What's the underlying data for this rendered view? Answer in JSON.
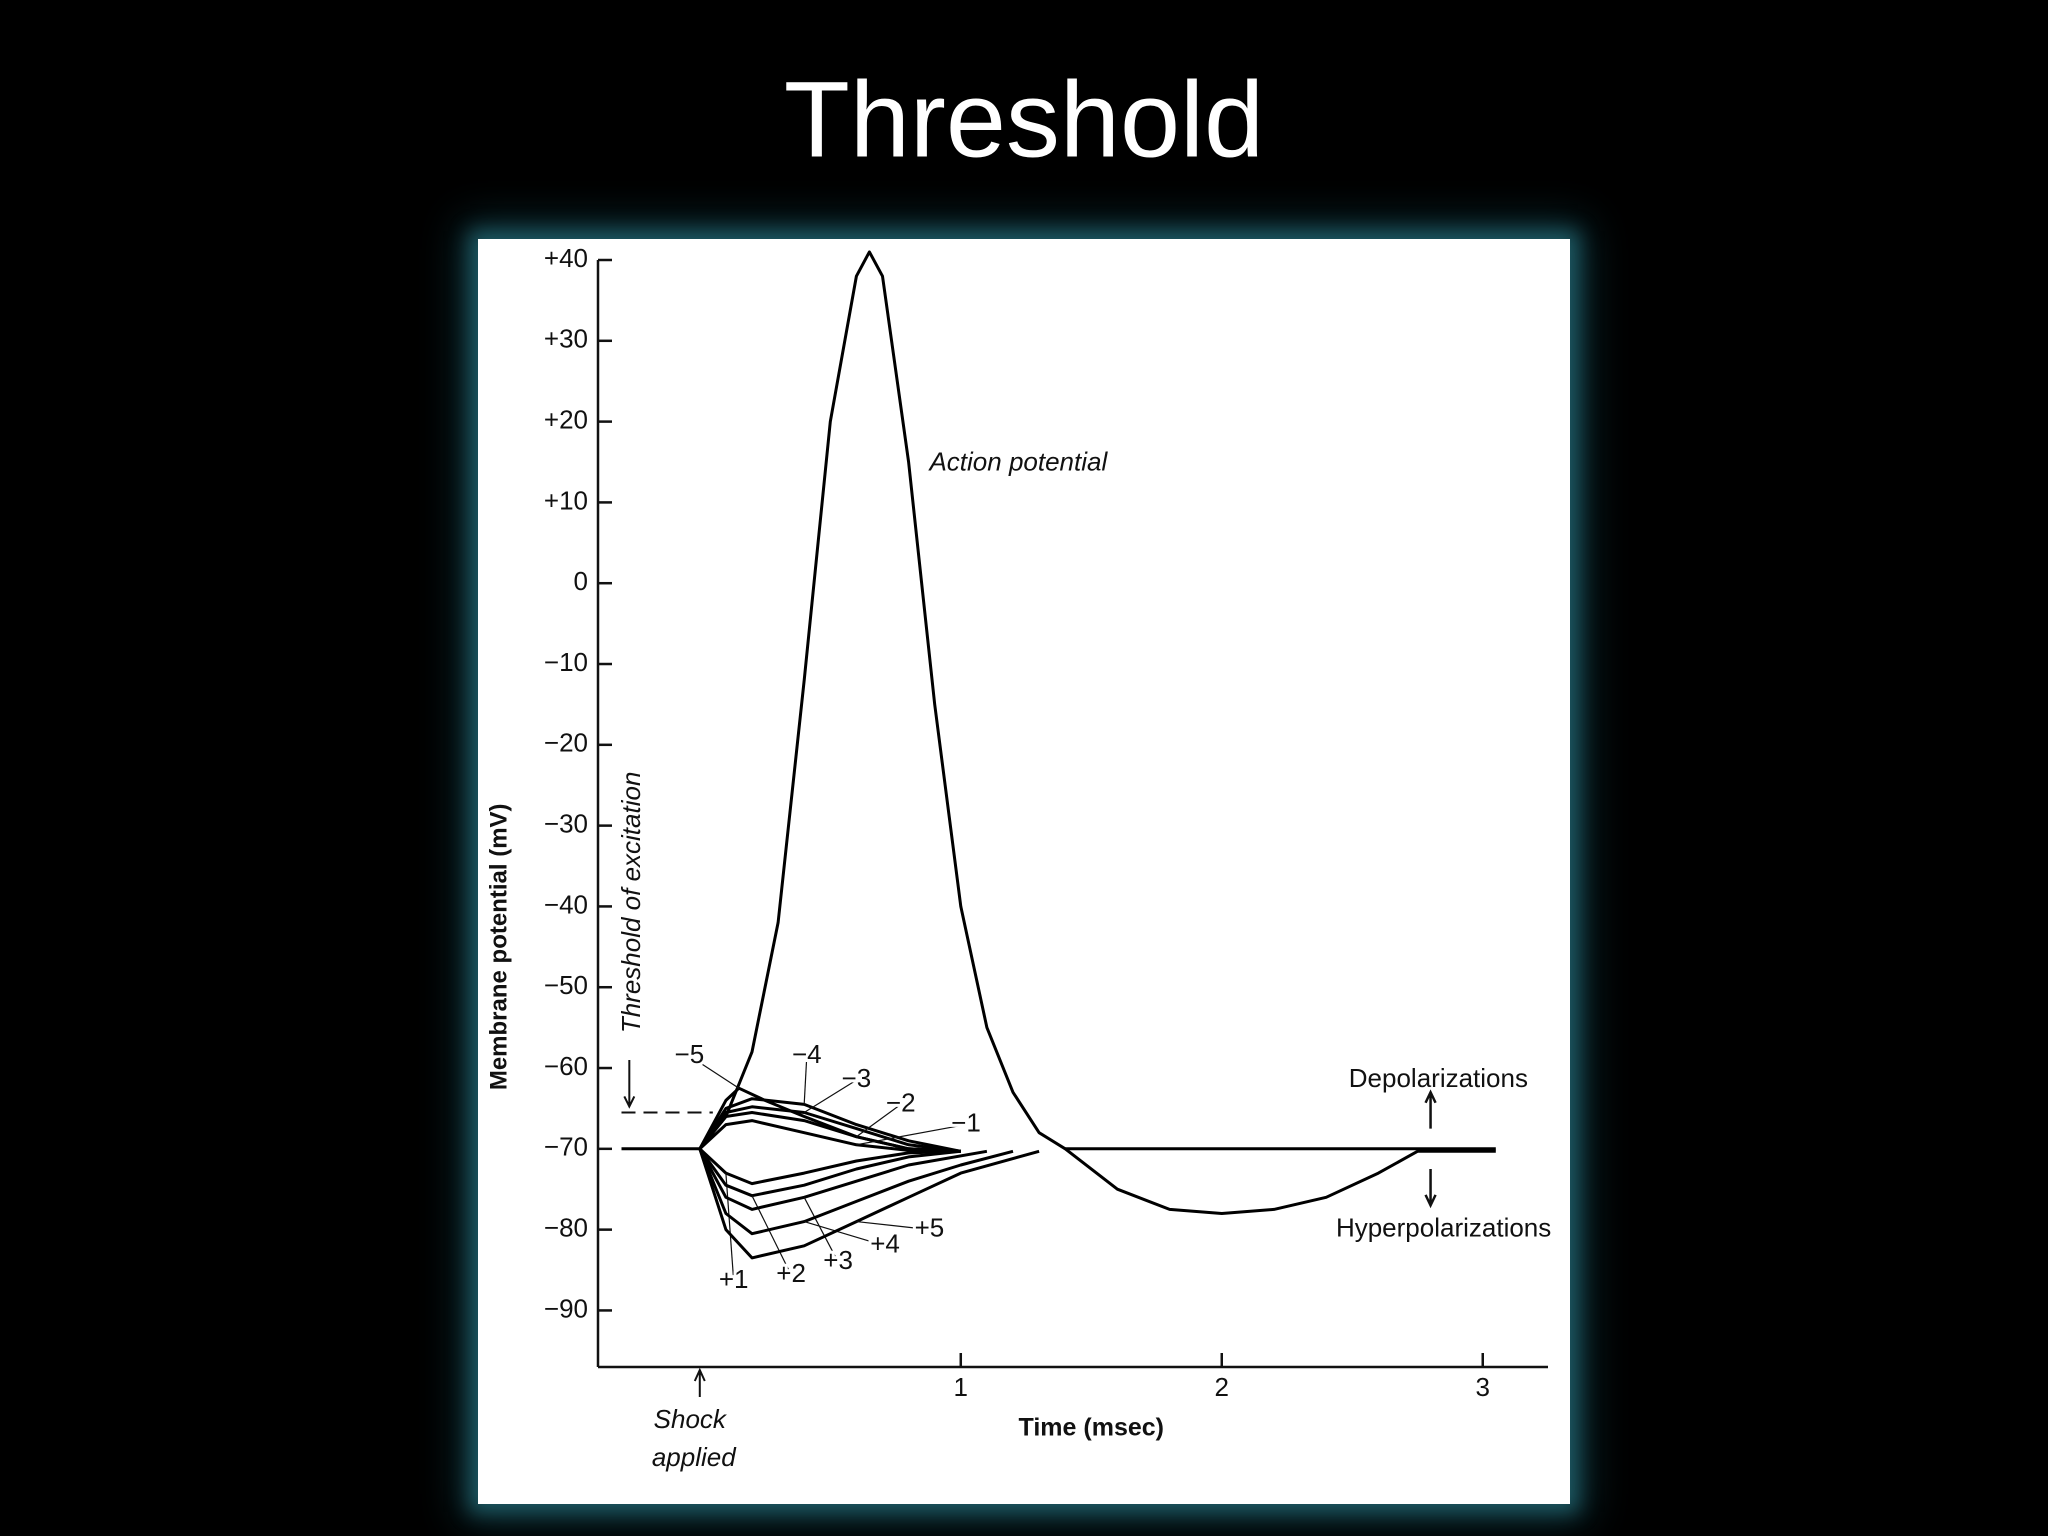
{
  "chart_data": {
    "type": "line",
    "title": "Threshold",
    "x_label": "Time (msec)",
    "y_label": "Membrane potential (mV)",
    "xlim": [
      -0.39,
      3.25
    ],
    "ylim": [
      -97,
      40
    ],
    "xticks": [
      1,
      2,
      3
    ],
    "yticks": [
      {
        "value": 40,
        "label": "+40"
      },
      {
        "value": 30,
        "label": "+30"
      },
      {
        "value": 20,
        "label": "+20"
      },
      {
        "value": 10,
        "label": "+10"
      },
      0,
      {
        "value": -10,
        "label": "−10"
      },
      {
        "value": -20,
        "label": "−20"
      },
      {
        "value": -30,
        "label": "−30"
      },
      {
        "value": -40,
        "label": "−40"
      },
      {
        "value": -50,
        "label": "−50"
      },
      {
        "value": -60,
        "label": "−60"
      },
      {
        "value": -70,
        "label": "−70"
      },
      {
        "value": -80,
        "label": "−80"
      },
      {
        "value": -90,
        "label": "−90"
      }
    ],
    "threshold": {
      "label": "Threshold of excitation",
      "value": -65.5
    },
    "shock_label": [
      "Shock",
      "applied"
    ],
    "annotations": [
      "Action potential",
      "Depolarizations",
      "Hyperpolarizations"
    ],
    "series": [
      {
        "color": "#000000",
        "x": [
          -0.3,
          0,
          0.1,
          0.2,
          0.3,
          0.4,
          0.5,
          0.6,
          0.65,
          0.7,
          0.8,
          0.9,
          1.0,
          1.1,
          1.2,
          1.3,
          1.4,
          1.6,
          1.8,
          2.0,
          2.2,
          2.4,
          2.6,
          2.75,
          3.05
        ],
        "values": [
          -70,
          -70,
          -66,
          -58,
          -42,
          -12,
          20,
          38,
          41,
          38,
          15,
          -15,
          -40,
          -55,
          -63,
          -68,
          -70,
          -75,
          -77.5,
          -78,
          -77.5,
          -76,
          -73,
          -70.3,
          -70.3
        ]
      },
      {
        "color": "#000000",
        "x": [
          1.4,
          3.05
        ],
        "values": [
          -70,
          -70
        ]
      },
      {
        "name": "−5",
        "color": "#000000",
        "x": [
          0,
          0.1,
          0.15,
          0.25,
          0.4,
          0.6,
          0.8,
          1.0
        ],
        "values": [
          -70,
          -64,
          -62.5,
          -64,
          -66,
          -68.5,
          -70,
          -70.3
        ]
      },
      {
        "name": "−4",
        "color": "#000000",
        "x": [
          0,
          0.1,
          0.2,
          0.4,
          0.6,
          0.8,
          1.0
        ],
        "values": [
          -70,
          -65,
          -63.8,
          -64.5,
          -67,
          -69,
          -70.3
        ]
      },
      {
        "name": "−3",
        "color": "#000000",
        "x": [
          0,
          0.1,
          0.2,
          0.4,
          0.6,
          0.8,
          1.0
        ],
        "values": [
          -70,
          -65.5,
          -64.8,
          -65.5,
          -67.5,
          -69.5,
          -70.3
        ]
      },
      {
        "name": "−2",
        "color": "#000000",
        "x": [
          0,
          0.1,
          0.2,
          0.4,
          0.6,
          0.8,
          1.0
        ],
        "values": [
          -70,
          -66,
          -65.5,
          -66.5,
          -68.5,
          -70,
          -70.3
        ]
      },
      {
        "name": "−1",
        "color": "#000000",
        "x": [
          0,
          0.1,
          0.2,
          0.4,
          0.6,
          0.8,
          1.0
        ],
        "values": [
          -70,
          -67,
          -66.5,
          -68,
          -69.5,
          -70.2,
          -70.3
        ]
      },
      {
        "name": "+1",
        "color": "#000000",
        "x": [
          0,
          0.1,
          0.2,
          0.4,
          0.6,
          0.8,
          1.0
        ],
        "values": [
          -70,
          -73,
          -74.3,
          -73,
          -71.5,
          -70.5,
          -70.3
        ]
      },
      {
        "name": "+2",
        "color": "#000000",
        "x": [
          0,
          0.1,
          0.2,
          0.4,
          0.6,
          0.8,
          1.0
        ],
        "values": [
          -70,
          -74.5,
          -75.8,
          -74.5,
          -72.5,
          -71,
          -70.3
        ]
      },
      {
        "name": "+3",
        "color": "#000000",
        "x": [
          0,
          0.1,
          0.2,
          0.4,
          0.6,
          0.8,
          1.1
        ],
        "values": [
          -70,
          -76,
          -77.5,
          -76,
          -74,
          -72,
          -70.3
        ]
      },
      {
        "name": "+4",
        "color": "#000000",
        "x": [
          0,
          0.1,
          0.2,
          0.4,
          0.6,
          0.8,
          1.0,
          1.2
        ],
        "values": [
          -70,
          -78,
          -80.5,
          -79,
          -76.5,
          -74,
          -72,
          -70.3
        ]
      },
      {
        "name": "+5",
        "color": "#000000",
        "x": [
          0,
          0.1,
          0.2,
          0.4,
          0.6,
          0.8,
          1.0,
          1.3
        ],
        "values": [
          -70,
          -80,
          -83.5,
          -82,
          -79,
          -76,
          -73,
          -70.3
        ]
      }
    ]
  }
}
